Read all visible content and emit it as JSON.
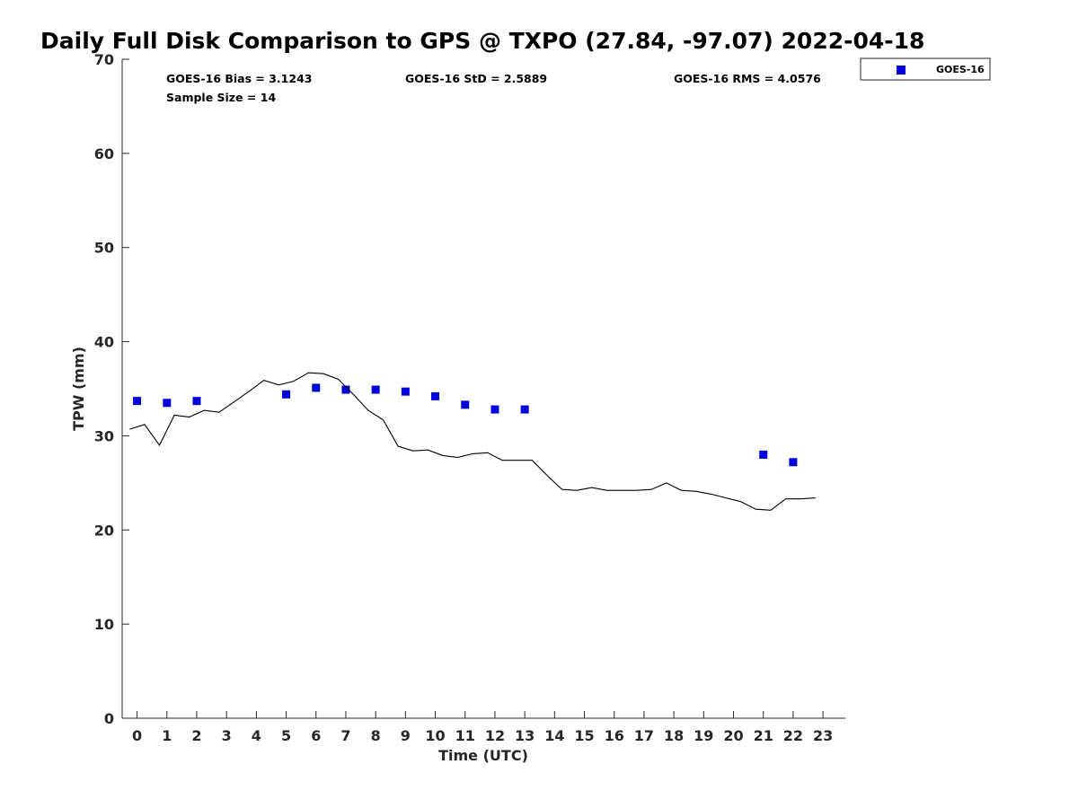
{
  "chart_data": {
    "type": "scatter",
    "title": "Daily Full Disk Comparison to GPS @ TXPO (27.84, -97.07) 2022-04-18",
    "xlabel": "Time (UTC)",
    "ylabel": "TPW (mm)",
    "xlim": [
      -0.5,
      23.75
    ],
    "ylim": [
      0,
      70
    ],
    "x_ticks": [
      "0",
      "1",
      "2",
      "3",
      "4",
      "5",
      "6",
      "7",
      "8",
      "9",
      "10",
      "11",
      "12",
      "13",
      "14",
      "15",
      "16",
      "17",
      "18",
      "19",
      "20",
      "21",
      "22",
      "23"
    ],
    "y_ticks": [
      "0",
      "10",
      "20",
      "30",
      "40",
      "50",
      "60",
      "70"
    ],
    "grid": false,
    "legend_position": "top-right (outside plot)",
    "stats": {
      "bias": "GOES-16 Bias = 3.1243",
      "std": "GOES-16 StD = 2.5889",
      "rms": "GOES-16 RMS = 4.0576",
      "sample": "Sample Size = 14"
    },
    "series": [
      {
        "name": "GOES-16",
        "kind": "scatter",
        "color": "#0000dd",
        "marker": "square",
        "x": [
          0,
          1,
          2,
          5,
          6,
          7,
          8,
          9,
          10,
          11,
          12,
          13,
          21,
          22
        ],
        "y": [
          33.7,
          33.5,
          33.7,
          34.4,
          35.1,
          34.9,
          34.9,
          34.7,
          34.2,
          33.3,
          32.8,
          32.8,
          28.0,
          27.2
        ]
      },
      {
        "kind": "line",
        "color": "#000000",
        "x": [
          -0.25,
          0.25,
          0.75,
          1.25,
          1.75,
          2.25,
          2.75,
          3.25,
          3.75,
          4.25,
          4.75,
          5.25,
          5.75,
          6.25,
          6.75,
          7.25,
          7.75,
          8.25,
          8.75,
          9.25,
          9.75,
          10.25,
          10.75,
          11.25,
          11.75,
          12.25,
          12.75,
          13.25,
          13.75,
          14.25,
          14.75,
          15.25,
          15.75,
          16.25,
          16.75,
          17.25,
          17.75,
          18.25,
          18.75,
          19.25,
          19.75,
          20.25,
          20.75,
          21.25,
          21.75,
          22.25,
          22.75
        ],
        "y": [
          30.7,
          31.2,
          29.0,
          32.2,
          32.0,
          32.7,
          32.5,
          33.6,
          34.7,
          35.9,
          35.4,
          35.8,
          36.7,
          36.6,
          36.0,
          34.4,
          32.7,
          31.7,
          28.9,
          28.4,
          28.5,
          27.9,
          27.7,
          28.1,
          28.2,
          27.4,
          27.4,
          27.4,
          25.8,
          24.3,
          24.2,
          24.5,
          24.2,
          24.2,
          24.2,
          24.3,
          25.0,
          24.2,
          24.1,
          23.8,
          23.4,
          23.0,
          22.2,
          22.1,
          23.3,
          23.3,
          23.4
        ]
      }
    ]
  }
}
